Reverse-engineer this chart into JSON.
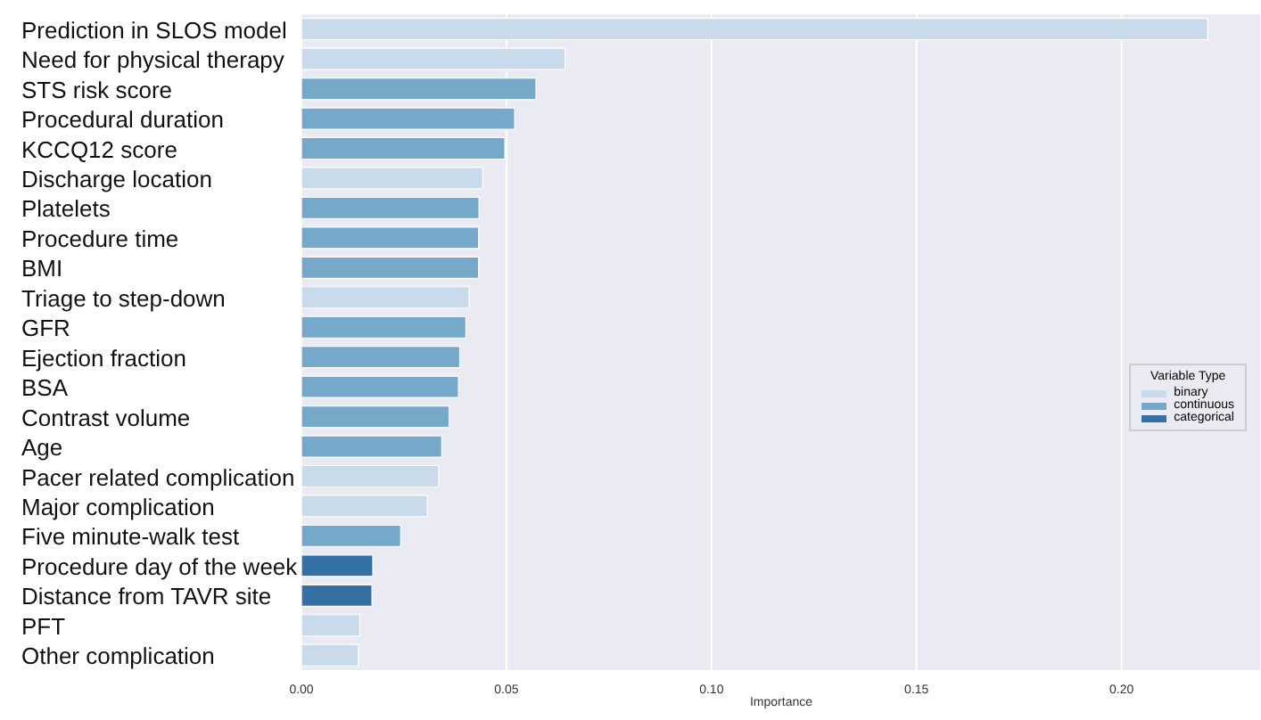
{
  "chart_data": {
    "type": "bar",
    "orientation": "horizontal",
    "stacked": true,
    "xlabel": "Importance",
    "legend_title": "Variable Type",
    "legend": "right",
    "grid": "x",
    "xlim": [
      0,
      0.234
    ],
    "xticks": [
      {
        "value": 0,
        "label": "0.00"
      },
      {
        "value": 0.05,
        "label": "0.05"
      },
      {
        "value": 0.1,
        "label": "0.10"
      },
      {
        "value": 0.15,
        "label": "0.15"
      },
      {
        "value": 0.2,
        "label": "0.20"
      }
    ],
    "categories": [
      "Prediction in SLOS model",
      "Need for physical therapy",
      "STS risk score",
      "Procedural duration",
      "KCCQ12 score",
      "Discharge location",
      "Platelets",
      "Procedure time",
      "BMI",
      "Triage to step-down",
      "GFR",
      "Ejection fraction",
      "BSA",
      "Contrast volume",
      "Age",
      "Pacer related complication",
      "Major complication",
      "Five minute-walk test",
      "Procedure day of the week",
      "Distance from TAVR site",
      "PFT",
      "Other complication"
    ],
    "series": [
      {
        "name": "binary",
        "color": "#c9daea",
        "values": [
          0.221,
          0.0643,
          null,
          null,
          null,
          0.0442,
          null,
          null,
          null,
          0.0409,
          null,
          null,
          null,
          null,
          null,
          0.0335,
          0.0307,
          null,
          null,
          null,
          0.0142,
          0.0139
        ]
      },
      {
        "name": "continuous",
        "color": "#76a8c9",
        "values": [
          null,
          null,
          0.0572,
          0.052,
          0.0496,
          null,
          0.0433,
          0.0432,
          0.0432,
          null,
          0.0401,
          0.0386,
          0.0383,
          0.036,
          0.0342,
          null,
          null,
          0.0242,
          null,
          null,
          null,
          null
        ]
      },
      {
        "name": "categorical",
        "color": "#3470a3",
        "values": [
          null,
          null,
          null,
          null,
          null,
          null,
          null,
          null,
          null,
          null,
          null,
          null,
          null,
          null,
          null,
          null,
          null,
          null,
          0.0174,
          0.0172,
          null,
          null
        ]
      }
    ]
  }
}
